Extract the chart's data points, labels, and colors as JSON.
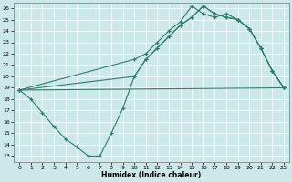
{
  "xlabel": "Humidex (Indice chaleur)",
  "xlim": [
    -0.5,
    23.5
  ],
  "ylim": [
    12.5,
    26.5
  ],
  "xticks": [
    0,
    1,
    2,
    3,
    4,
    5,
    6,
    7,
    8,
    9,
    10,
    11,
    12,
    13,
    14,
    15,
    16,
    17,
    18,
    19,
    20,
    21,
    22,
    23
  ],
  "yticks": [
    13,
    14,
    15,
    16,
    17,
    18,
    19,
    20,
    21,
    22,
    23,
    24,
    25,
    26
  ],
  "line_color": "#2e7d6e",
  "bg_color": "#cce8e8",
  "line1_x": [
    0,
    10,
    11,
    12,
    13,
    14,
    15,
    16,
    17,
    18,
    19,
    20,
    21,
    22,
    23
  ],
  "line1_y": [
    18.8,
    21.5,
    22.0,
    23.0,
    24.0,
    24.8,
    26.2,
    25.5,
    25.2,
    25.5,
    25.0,
    24.2,
    22.5,
    20.5,
    19.0
  ],
  "line2_x": [
    0,
    10,
    11,
    12,
    13,
    14,
    15,
    16,
    17,
    18,
    19,
    20,
    21,
    22,
    23
  ],
  "line2_y": [
    18.8,
    20.0,
    21.5,
    22.5,
    23.5,
    24.5,
    25.2,
    26.2,
    25.5,
    25.2,
    25.0,
    24.2,
    22.5,
    20.5,
    19.0
  ],
  "line3_x": [
    0,
    1,
    2,
    3,
    4,
    5,
    6,
    7,
    8,
    9,
    10,
    11,
    12,
    13,
    14,
    15,
    16,
    17,
    18,
    19,
    20,
    21,
    22,
    23
  ],
  "line3_y": [
    18.8,
    18.0,
    16.8,
    15.6,
    14.5,
    13.8,
    13.0,
    13.0,
    15.0,
    17.2,
    20.0,
    21.5,
    22.5,
    23.5,
    24.5,
    25.2,
    26.2,
    25.5,
    25.2,
    25.0,
    24.2,
    22.5,
    20.5,
    19.0
  ],
  "line4_x": [
    0,
    23
  ],
  "line4_y": [
    18.8,
    19.0
  ],
  "marker": "+"
}
